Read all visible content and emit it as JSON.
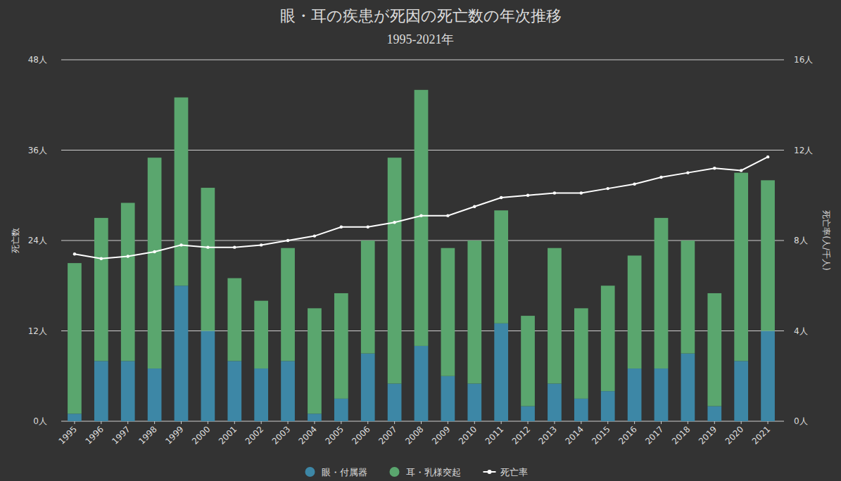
{
  "chart_data": {
    "type": "bar",
    "stacked": true,
    "grid": true,
    "legend": "bottom",
    "title": "眼・耳の疾患が死因の死亡数の年次推移",
    "subtitle": "1995-2021年",
    "y_label": "死亡数",
    "y2_label": "死亡率(人/千人)",
    "categories": [
      "1995",
      "1996",
      "1997",
      "1998",
      "1999",
      "2000",
      "2001",
      "2002",
      "2003",
      "2004",
      "2005",
      "2006",
      "2007",
      "2008",
      "2009",
      "2010",
      "2011",
      "2012",
      "2013",
      "2014",
      "2015",
      "2016",
      "2017",
      "2018",
      "2019",
      "2020",
      "2021"
    ],
    "ylim": [
      0,
      48
    ],
    "yticks": [
      {
        "value": 0,
        "label": "0人"
      },
      {
        "value": 12,
        "label": "12人"
      },
      {
        "value": 24,
        "label": "24人"
      },
      {
        "value": 36,
        "label": "36人"
      },
      {
        "value": 48,
        "label": "48人"
      }
    ],
    "y2lim": [
      0,
      16
    ],
    "y2ticks": [
      {
        "value": 0,
        "label": "0人"
      },
      {
        "value": 4,
        "label": "4人"
      },
      {
        "value": 8,
        "label": "8人"
      },
      {
        "value": 12,
        "label": "12人"
      },
      {
        "value": 16,
        "label": "16人"
      }
    ],
    "series": [
      {
        "name": "眼・付属器",
        "type": "bar",
        "color": "#3d87a6",
        "values": [
          1,
          8,
          8,
          7,
          18,
          12,
          8,
          7,
          8,
          1,
          3,
          9,
          5,
          10,
          6,
          5,
          13,
          2,
          5,
          3,
          4,
          7,
          7,
          9,
          2,
          8,
          12
        ]
      },
      {
        "name": "耳・乳様突起",
        "type": "bar",
        "color": "#5aa66e",
        "values": [
          20,
          19,
          21,
          28,
          25,
          19,
          11,
          9,
          15,
          14,
          14,
          15,
          30,
          34,
          17,
          19,
          15,
          12,
          18,
          12,
          14,
          15,
          20,
          15,
          15,
          25,
          20
        ]
      },
      {
        "name": "死亡率",
        "type": "line",
        "axis": "y2",
        "color": "#ffffff",
        "marker": "circle",
        "line_style": "solid",
        "values": [
          7.4,
          7.2,
          7.3,
          7.5,
          7.8,
          7.7,
          7.7,
          7.8,
          8.0,
          8.2,
          8.6,
          8.6,
          8.8,
          9.1,
          9.1,
          9.5,
          9.9,
          10.0,
          10.1,
          10.1,
          10.3,
          10.5,
          10.8,
          11.0,
          11.2,
          11.1,
          11.7
        ]
      }
    ]
  }
}
